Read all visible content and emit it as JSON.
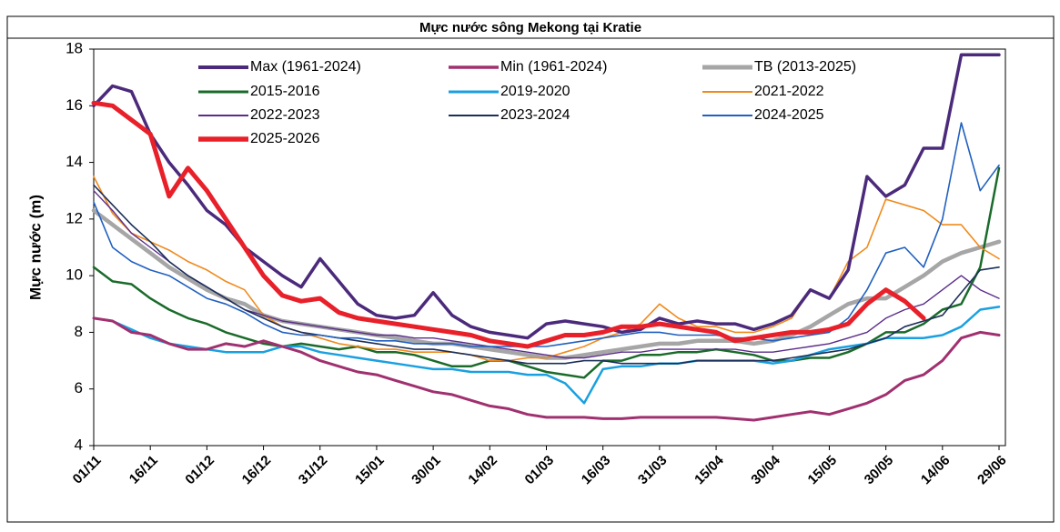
{
  "chart_data": {
    "type": "line",
    "title": "Mực nước sông Mekong tại Kratie",
    "y_label": "Mực nước (m)",
    "categories": [
      "01/11",
      null,
      null,
      "16/11",
      null,
      null,
      "01/12",
      null,
      null,
      "16/12",
      null,
      null,
      "31/12",
      null,
      null,
      "15/01",
      null,
      null,
      "30/01",
      null,
      null,
      "14/02",
      null,
      null,
      "01/03",
      null,
      null,
      "16/03",
      null,
      null,
      "31/03",
      null,
      null,
      "15/04",
      null,
      null,
      "30/04",
      null,
      null,
      "15/05",
      null,
      null,
      "30/05",
      null,
      null,
      "14/06",
      null,
      null,
      "29/06"
    ],
    "ylim": [
      4,
      18
    ],
    "yticks": [
      4,
      6,
      8,
      10,
      12,
      14,
      16,
      18
    ],
    "grid": false,
    "series": [
      {
        "name": "Max (1961-2024)",
        "color": "#4b2a7b",
        "values": [
          16.0,
          16.7,
          16.5,
          15.0,
          14.0,
          13.2,
          12.3,
          11.8,
          11.0,
          10.5,
          10.0,
          9.6,
          10.6,
          9.8,
          9.0,
          8.6,
          8.5,
          8.6,
          9.4,
          8.6,
          8.2,
          8.0,
          7.9,
          7.8,
          8.3,
          8.4,
          8.3,
          8.2,
          8.0,
          8.1,
          8.5,
          8.3,
          8.4,
          8.3,
          8.3,
          8.1,
          8.3,
          8.6,
          9.5,
          9.2,
          10.2,
          13.5,
          12.8,
          13.2,
          14.5,
          14.5,
          17.8,
          17.8,
          17.8
        ]
      },
      {
        "name": "Min (1961-2024)",
        "color": "#a0306f",
        "values": [
          8.5,
          8.4,
          8.0,
          7.9,
          7.6,
          7.4,
          7.4,
          7.6,
          7.5,
          7.7,
          7.5,
          7.3,
          7.0,
          6.8,
          6.6,
          6.5,
          6.3,
          6.1,
          5.9,
          5.8,
          5.6,
          5.4,
          5.3,
          5.1,
          5.0,
          5.0,
          5.0,
          4.95,
          4.95,
          5.0,
          5.0,
          5.0,
          5.0,
          5.0,
          4.95,
          4.9,
          5.0,
          5.1,
          5.2,
          5.1,
          5.3,
          5.5,
          5.8,
          6.3,
          6.5,
          7.0,
          7.8,
          8.0,
          7.9
        ]
      },
      {
        "name": "TB (2013-2025)",
        "color": "#a6a6a6",
        "values": [
          12.3,
          11.8,
          11.3,
          10.8,
          10.3,
          9.9,
          9.5,
          9.2,
          9.0,
          8.6,
          8.4,
          8.3,
          8.2,
          8.1,
          8.0,
          7.9,
          7.8,
          7.7,
          7.6,
          7.6,
          7.5,
          7.4,
          7.3,
          7.2,
          7.1,
          7.1,
          7.2,
          7.3,
          7.4,
          7.5,
          7.6,
          7.6,
          7.7,
          7.7,
          7.7,
          7.6,
          7.7,
          7.9,
          8.2,
          8.6,
          9.0,
          9.2,
          9.2,
          9.6,
          10.0,
          10.5,
          10.8,
          11.0,
          11.2
        ]
      },
      {
        "name": "2015-2016",
        "color": "#1a6b2a",
        "values": [
          10.3,
          9.8,
          9.7,
          9.2,
          8.8,
          8.5,
          8.3,
          8.0,
          7.8,
          7.6,
          7.5,
          7.6,
          7.5,
          7.4,
          7.5,
          7.3,
          7.3,
          7.2,
          7.0,
          6.8,
          6.8,
          7.0,
          7.0,
          6.8,
          6.6,
          6.5,
          6.4,
          7.0,
          7.0,
          7.2,
          7.2,
          7.3,
          7.3,
          7.4,
          7.3,
          7.2,
          7.0,
          7.0,
          7.1,
          7.1,
          7.3,
          7.6,
          8.0,
          8.0,
          8.3,
          8.8,
          9.0,
          10.3,
          13.8
        ]
      },
      {
        "name": "2019-2020",
        "color": "#1aa0e0",
        "values": [
          8.5,
          8.4,
          8.1,
          7.8,
          7.6,
          7.5,
          7.4,
          7.3,
          7.3,
          7.3,
          7.5,
          7.5,
          7.3,
          7.2,
          7.1,
          7.0,
          6.9,
          6.8,
          6.7,
          6.7,
          6.6,
          6.6,
          6.6,
          6.5,
          6.5,
          6.2,
          5.5,
          6.7,
          6.8,
          6.8,
          6.9,
          6.9,
          7.0,
          7.0,
          7.0,
          7.0,
          6.9,
          7.0,
          7.2,
          7.4,
          7.5,
          7.6,
          7.8,
          7.8,
          7.8,
          7.9,
          8.2,
          8.8,
          8.9
        ]
      },
      {
        "name": "2021-2022",
        "color": "#f08a1c",
        "values": [
          13.5,
          12.2,
          11.5,
          11.2,
          10.9,
          10.5,
          10.2,
          9.8,
          9.5,
          8.6,
          8.2,
          8.0,
          7.8,
          7.6,
          7.5,
          7.4,
          7.4,
          7.3,
          7.3,
          7.3,
          7.2,
          7.0,
          7.0,
          7.1,
          7.1,
          7.3,
          7.5,
          7.8,
          8.0,
          8.3,
          9.0,
          8.5,
          8.2,
          8.2,
          8.0,
          8.0,
          8.2,
          8.5,
          9.5,
          9.2,
          10.5,
          11.0,
          12.7,
          12.5,
          12.3,
          11.8,
          11.8,
          11.0,
          10.6
        ]
      },
      {
        "name": "2022-2023",
        "color": "#5a2d8a",
        "values": [
          13.0,
          12.3,
          11.5,
          11.0,
          10.5,
          10.0,
          9.6,
          9.2,
          8.8,
          8.6,
          8.4,
          8.3,
          8.2,
          8.1,
          8.0,
          7.9,
          7.9,
          7.8,
          7.8,
          7.7,
          7.6,
          7.5,
          7.4,
          7.3,
          7.2,
          7.1,
          7.1,
          7.2,
          7.3,
          7.3,
          7.4,
          7.4,
          7.4,
          7.4,
          7.4,
          7.3,
          7.3,
          7.4,
          7.5,
          7.6,
          7.8,
          8.0,
          8.5,
          8.8,
          9.0,
          9.5,
          10.0,
          9.5,
          9.2
        ]
      },
      {
        "name": "2023-2024",
        "color": "#1c2f5a",
        "values": [
          13.2,
          12.5,
          11.8,
          11.2,
          10.5,
          10.0,
          9.6,
          9.2,
          8.8,
          8.5,
          8.2,
          8.0,
          7.9,
          7.8,
          7.7,
          7.6,
          7.5,
          7.4,
          7.4,
          7.3,
          7.2,
          7.1,
          7.0,
          6.9,
          6.9,
          6.9,
          7.0,
          7.0,
          6.9,
          6.9,
          6.9,
          6.9,
          7.0,
          7.0,
          7.0,
          7.0,
          7.0,
          7.1,
          7.2,
          7.3,
          7.4,
          7.6,
          7.8,
          8.2,
          8.4,
          8.6,
          9.4,
          10.2,
          10.3
        ]
      },
      {
        "name": "2024-2025",
        "color": "#2060c0",
        "values": [
          12.6,
          11.0,
          10.5,
          10.2,
          10.0,
          9.6,
          9.2,
          9.0,
          8.7,
          8.3,
          8.0,
          7.9,
          7.9,
          7.8,
          7.8,
          7.7,
          7.7,
          7.6,
          7.6,
          7.6,
          7.5,
          7.5,
          7.5,
          7.5,
          7.5,
          7.6,
          7.7,
          7.8,
          7.9,
          8.0,
          8.0,
          7.9,
          7.9,
          7.9,
          7.8,
          7.8,
          7.7,
          7.8,
          7.9,
          8.0,
          8.5,
          9.5,
          10.8,
          11.0,
          10.3,
          12.0,
          15.4,
          13.0,
          13.9
        ]
      },
      {
        "name": "2025-2026",
        "color": "#e8202a",
        "values": [
          16.1,
          16.0,
          15.5,
          15.0,
          12.8,
          13.8,
          13.0,
          12.0,
          11.0,
          10.0,
          9.3,
          9.1,
          9.2,
          8.7,
          8.5,
          8.4,
          8.3,
          8.2,
          8.1,
          8.0,
          7.9,
          7.7,
          7.6,
          7.5,
          7.7,
          7.9,
          7.9,
          8.0,
          8.2,
          8.2,
          8.3,
          8.2,
          8.1,
          8.0,
          7.7,
          7.8,
          7.9,
          8.0,
          8.0,
          8.1,
          8.3,
          9.0,
          9.5,
          9.1,
          8.5,
          null,
          null,
          null,
          null
        ]
      }
    ]
  }
}
